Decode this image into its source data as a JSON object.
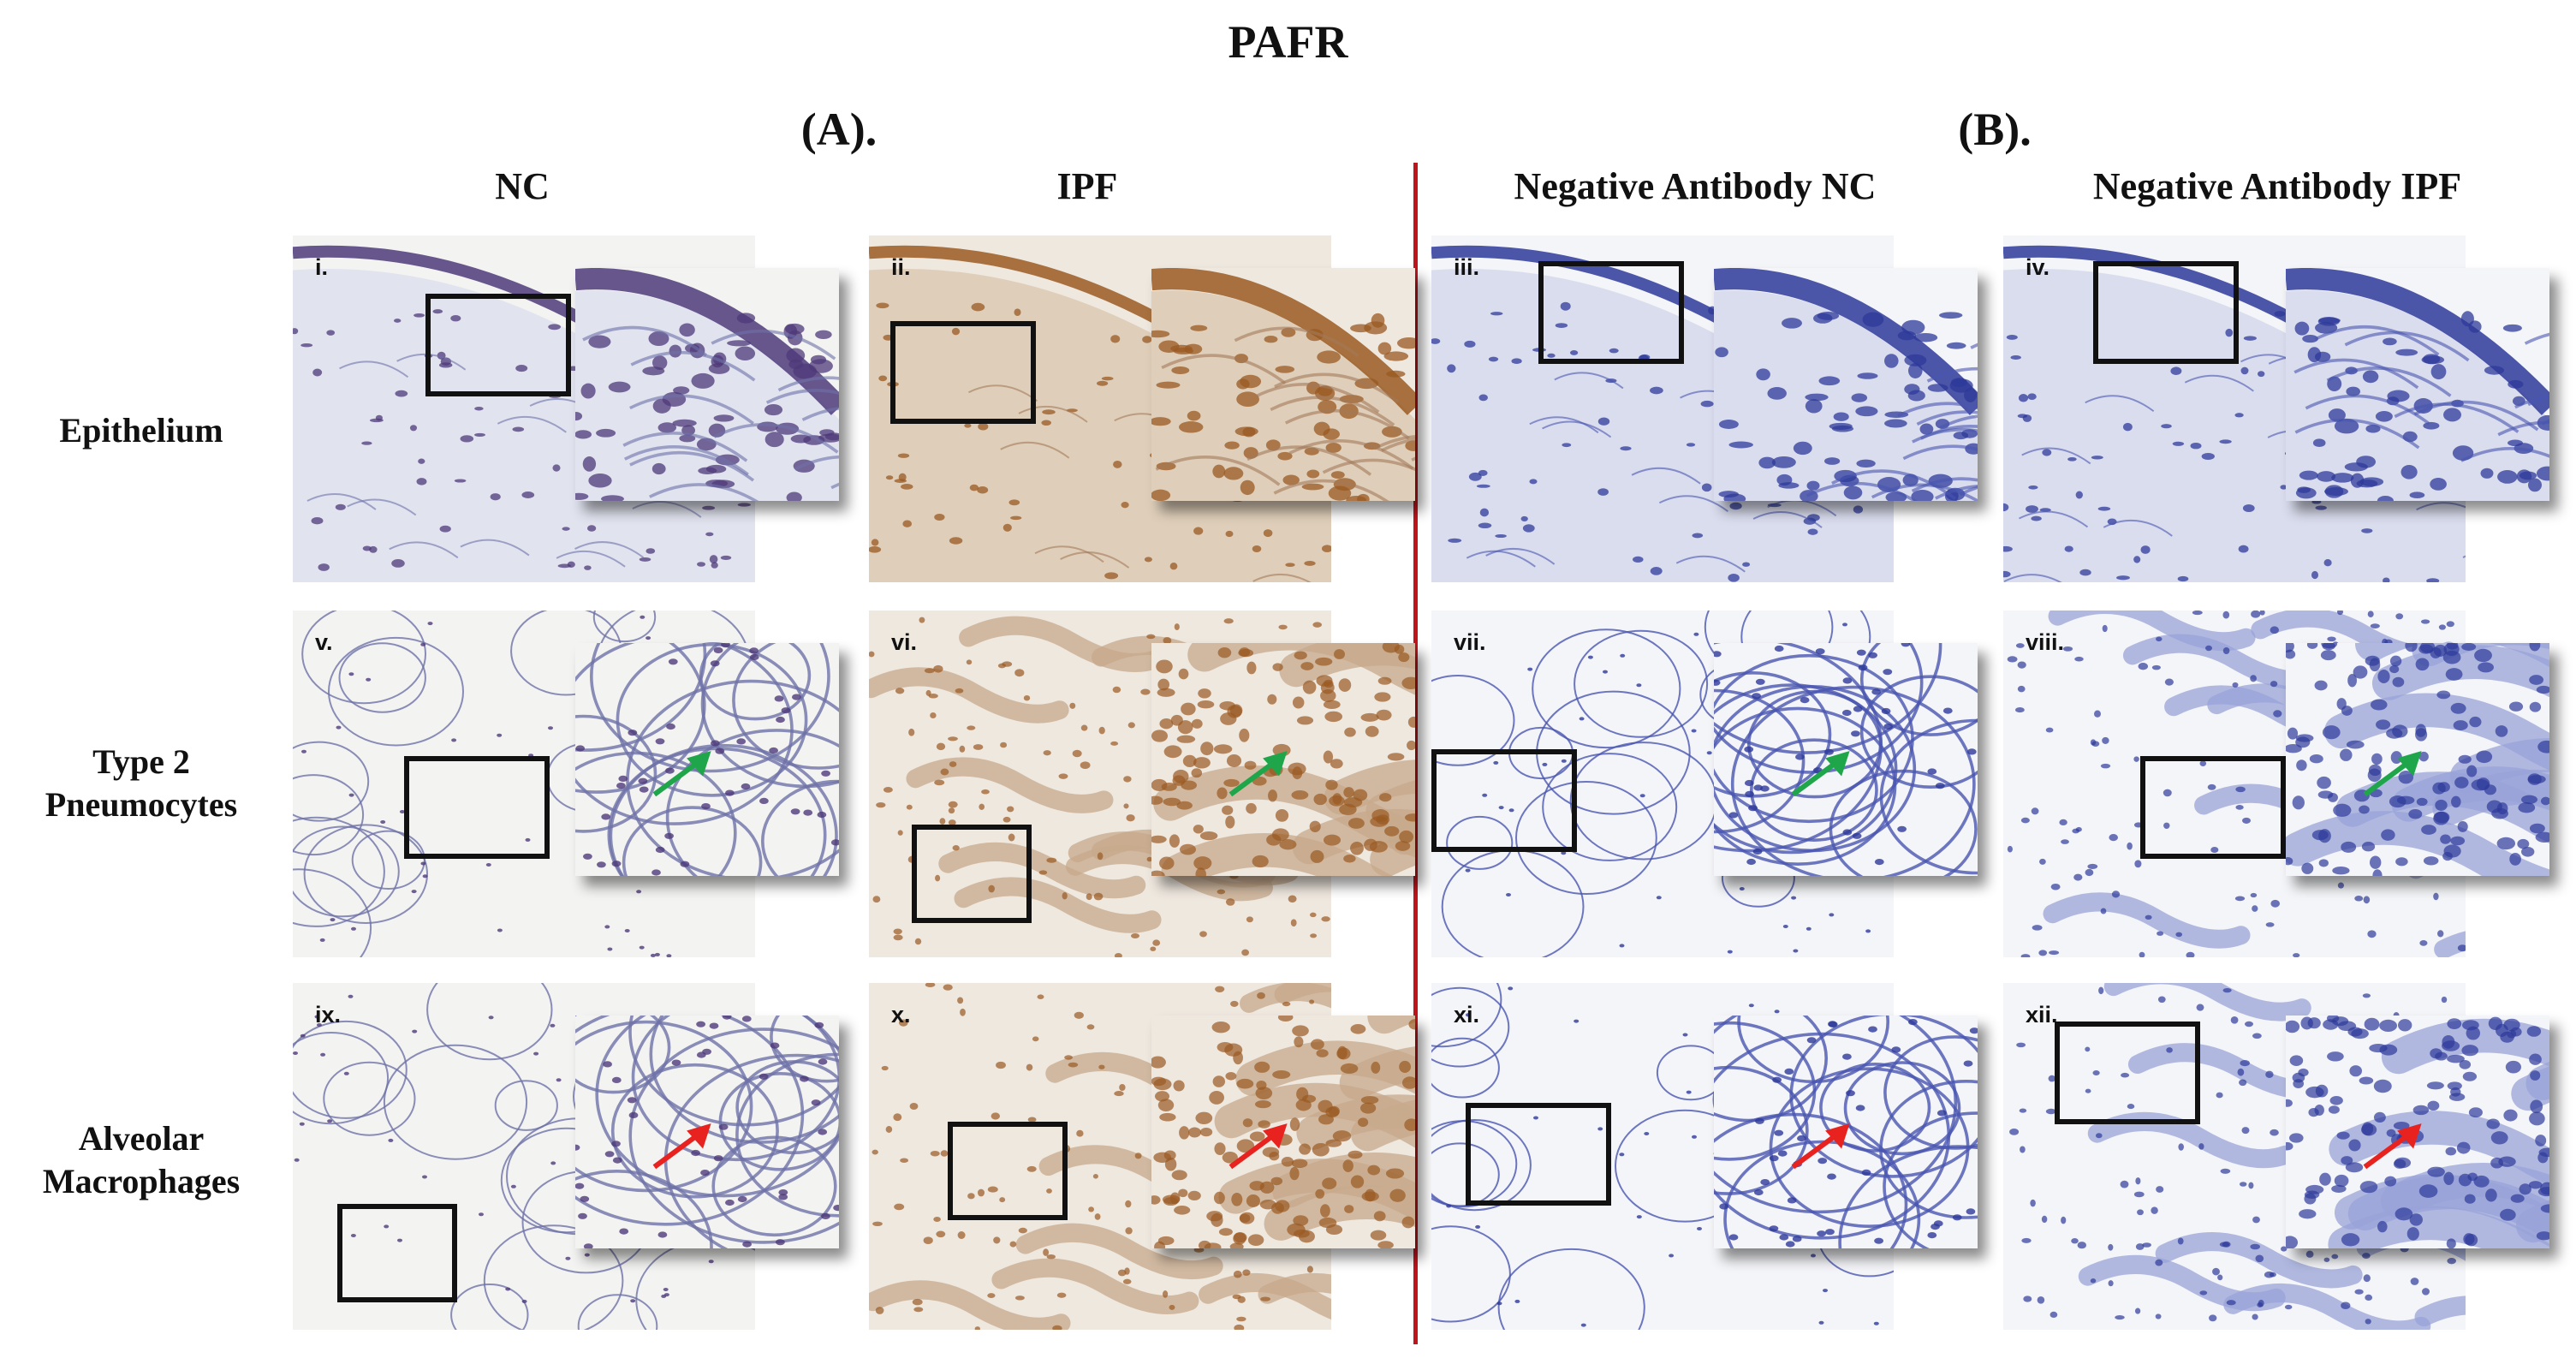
{
  "figure": {
    "title": "PAFR",
    "sections": [
      {
        "label": "(A).",
        "columns": [
          "NC",
          "IPF"
        ]
      },
      {
        "label": "(B).",
        "columns": [
          "Negative Antibody NC",
          "Negative Antibody IPF"
        ]
      }
    ],
    "rows": [
      "Epithelium",
      "Type 2 Pneumocytes",
      "Alveolar Macrophages"
    ],
    "divider_color": "#c0141c",
    "panels": [
      {
        "id": "i.",
        "row": 0,
        "col": 0,
        "stain": "pafr-nc",
        "tissue": "epithelium",
        "arrow": null
      },
      {
        "id": "ii.",
        "row": 0,
        "col": 1,
        "stain": "pafr-ipf",
        "tissue": "epithelium",
        "arrow": null
      },
      {
        "id": "iii.",
        "row": 0,
        "col": 2,
        "stain": "neg-nc",
        "tissue": "epithelium",
        "arrow": null
      },
      {
        "id": "iv.",
        "row": 0,
        "col": 3,
        "stain": "neg-ipf",
        "tissue": "epithelium",
        "arrow": null
      },
      {
        "id": "v.",
        "row": 1,
        "col": 0,
        "stain": "pafr-nc",
        "tissue": "alveoli",
        "arrow": "green"
      },
      {
        "id": "vi.",
        "row": 1,
        "col": 1,
        "stain": "pafr-ipf",
        "tissue": "fibrotic",
        "arrow": "green"
      },
      {
        "id": "vii.",
        "row": 1,
        "col": 2,
        "stain": "neg-nc",
        "tissue": "alveoli",
        "arrow": "green"
      },
      {
        "id": "viii.",
        "row": 1,
        "col": 3,
        "stain": "neg-ipf",
        "tissue": "fibrotic",
        "arrow": "green"
      },
      {
        "id": "ix.",
        "row": 2,
        "col": 0,
        "stain": "pafr-nc",
        "tissue": "alveoli",
        "arrow": "red"
      },
      {
        "id": "x.",
        "row": 2,
        "col": 1,
        "stain": "pafr-ipf",
        "tissue": "fibrotic",
        "arrow": "red"
      },
      {
        "id": "xi.",
        "row": 2,
        "col": 2,
        "stain": "neg-nc",
        "tissue": "alveoli",
        "arrow": "red"
      },
      {
        "id": "xii.",
        "row": 2,
        "col": 3,
        "stain": "neg-ipf",
        "tissue": "fibrotic",
        "arrow": "red"
      }
    ],
    "colors": {
      "hematoxylin": "#2e3a9a",
      "dab": "#9a5a22",
      "green_arrow": "#1fa64a",
      "red_arrow": "#e8231f",
      "box": "#111111"
    }
  }
}
